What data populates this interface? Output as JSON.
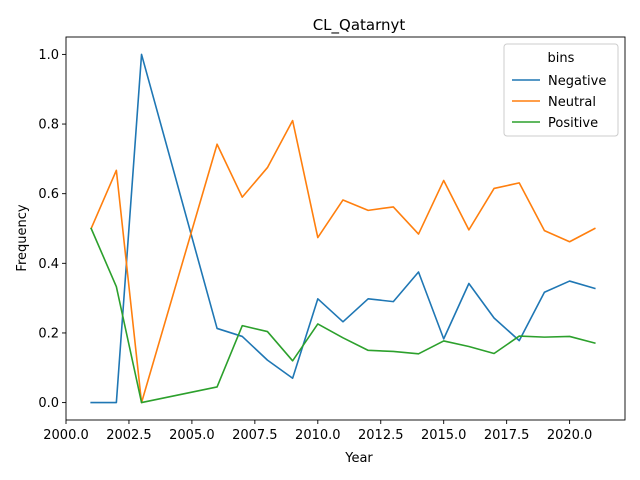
{
  "chart_data": {
    "type": "line",
    "title": "CL_Qatarnyt",
    "xlabel": "Year",
    "ylabel": "Frequency",
    "xlim": [
      2000.0,
      2022.2
    ],
    "ylim": [
      -0.05,
      1.05
    ],
    "xticks": [
      2000.0,
      2002.5,
      2005.0,
      2007.5,
      2010.0,
      2012.5,
      2015.0,
      2017.5,
      2020.0
    ],
    "xtick_labels": [
      "2000.0",
      "2002.5",
      "2005.0",
      "2007.5",
      "2010.0",
      "2012.5",
      "2015.0",
      "2017.5",
      "2020.0"
    ],
    "yticks": [
      0.0,
      0.2,
      0.4,
      0.6,
      0.8,
      1.0
    ],
    "ytick_labels": [
      "0.0",
      "0.2",
      "0.4",
      "0.6",
      "0.8",
      "1.0"
    ],
    "grid": false,
    "legend": {
      "title": "bins",
      "placement": "top-right"
    },
    "x": [
      2001,
      2002,
      2003,
      2006,
      2007,
      2008,
      2009,
      2010,
      2011,
      2012,
      2013,
      2014,
      2015,
      2016,
      2017,
      2018,
      2019,
      2020,
      2021
    ],
    "series": [
      {
        "name": "Negative",
        "color": "#1f77b4",
        "values": [
          0.0,
          0.0,
          1.0,
          0.213,
          0.19,
          0.122,
          0.07,
          0.298,
          0.232,
          0.298,
          0.29,
          0.375,
          0.183,
          0.342,
          0.243,
          0.178,
          0.317,
          0.349,
          0.328
        ]
      },
      {
        "name": "Neutral",
        "color": "#ff7f0e",
        "values": [
          0.5,
          0.667,
          0.0,
          0.742,
          0.59,
          0.675,
          0.81,
          0.474,
          0.582,
          0.552,
          0.562,
          0.484,
          0.638,
          0.496,
          0.615,
          0.631,
          0.494,
          0.462,
          0.5
        ]
      },
      {
        "name": "Positive",
        "color": "#2ca02c",
        "values": [
          0.5,
          0.333,
          0.0,
          0.045,
          0.221,
          0.204,
          0.12,
          0.226,
          0.186,
          0.15,
          0.147,
          0.14,
          0.177,
          0.161,
          0.141,
          0.191,
          0.188,
          0.19,
          0.171
        ]
      }
    ]
  }
}
